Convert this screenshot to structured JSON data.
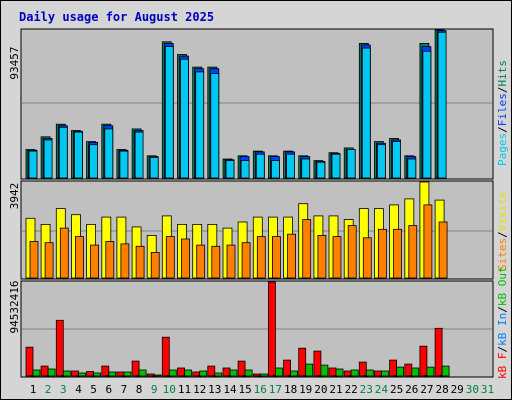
{
  "title": "Daily usage for August 2025",
  "colors": {
    "background": "#d5d5d5",
    "panel": "#c0c0c0",
    "title": "#0000c0",
    "hits": "#00805c",
    "files": "#0040ff",
    "pages": "#00c8f0",
    "visits": "#ffff00",
    "sites": "#ff8000",
    "kb_f": "#ff0000",
    "kb_in": "#0080ff",
    "kb_out": "#00c000",
    "weekday_tick": "#000000",
    "weekend_tick": "#008040"
  },
  "legend_top": {
    "pages": "Pages",
    "sep1": "/",
    "files": "Files",
    "sep2": "/",
    "hits": "Hits"
  },
  "legend_mid": {
    "sites": "Sites",
    "sep": "/",
    "visits": "Visits"
  },
  "legend_bot": {
    "kbf": "kB F",
    "sep1": "/",
    "kbin": "kB In",
    "sep2": "/",
    "kbout": "kB Out"
  },
  "chart_data": [
    {
      "type": "bar",
      "panel": "hits-files-pages",
      "categories": [
        "1",
        "2",
        "3",
        "4",
        "5",
        "6",
        "7",
        "8",
        "9",
        "10",
        "11",
        "12",
        "13",
        "14",
        "15",
        "16",
        "17",
        "18",
        "19",
        "20",
        "21",
        "22",
        "23",
        "24",
        "25",
        "26",
        "27",
        "28",
        "29",
        "30",
        "31"
      ],
      "y_label": "93457",
      "ylim": [
        0,
        93457
      ],
      "series": [
        {
          "name": "Hits",
          "values": [
            18000,
            26000,
            34000,
            30000,
            23000,
            34000,
            18000,
            31000,
            14000,
            86000,
            78000,
            70000,
            70000,
            12000,
            14000,
            17000,
            14000,
            17000,
            14000,
            11000,
            16000,
            19000,
            85000,
            23000,
            25000,
            14000,
            85000,
            93457,
            0,
            0,
            0
          ]
        },
        {
          "name": "Files",
          "values": [
            17500,
            25000,
            33000,
            29500,
            22500,
            33000,
            17500,
            30000,
            13500,
            85000,
            77000,
            69000,
            69000,
            11500,
            13500,
            16500,
            13500,
            16500,
            13500,
            10500,
            15500,
            18000,
            84000,
            22000,
            24000,
            13500,
            83000,
            93000,
            0,
            0,
            0
          ]
        },
        {
          "name": "Pages",
          "values": [
            17000,
            24000,
            32000,
            29000,
            21000,
            31000,
            17000,
            29000,
            13000,
            83000,
            75000,
            67000,
            66000,
            11000,
            11000,
            15000,
            11000,
            15000,
            12000,
            10000,
            15000,
            18000,
            82000,
            21000,
            23000,
            12000,
            80000,
            92000,
            0,
            0,
            0
          ]
        }
      ]
    },
    {
      "type": "bar",
      "panel": "visits-sites",
      "categories": [
        "1",
        "2",
        "3",
        "4",
        "5",
        "6",
        "7",
        "8",
        "9",
        "10",
        "11",
        "12",
        "13",
        "14",
        "15",
        "16",
        "17",
        "18",
        "19",
        "20",
        "21",
        "22",
        "23",
        "24",
        "25",
        "26",
        "27",
        "28",
        "29",
        "30",
        "31"
      ],
      "y_label": "3942",
      "ylim": [
        0,
        3942
      ],
      "series": [
        {
          "name": "Visits",
          "values": [
            2450,
            2200,
            2850,
            2600,
            2200,
            2500,
            2500,
            2100,
            1750,
            2550,
            2200,
            2200,
            2200,
            2050,
            2300,
            2500,
            2500,
            2500,
            3050,
            2550,
            2550,
            2400,
            2850,
            2850,
            3000,
            3250,
            3942,
            3200,
            0,
            0,
            0
          ]
        },
        {
          "name": "Sites",
          "values": [
            1500,
            1450,
            2050,
            1700,
            1350,
            1500,
            1400,
            1300,
            1050,
            1700,
            1600,
            1350,
            1300,
            1350,
            1450,
            1700,
            1700,
            1800,
            2400,
            1750,
            1700,
            2150,
            1650,
            2000,
            2000,
            2150,
            3000,
            2300,
            0,
            0,
            0
          ]
        }
      ]
    },
    {
      "type": "bar",
      "panel": "kilobytes",
      "categories": [
        "1",
        "2",
        "3",
        "4",
        "5",
        "6",
        "7",
        "8",
        "9",
        "10",
        "11",
        "12",
        "13",
        "14",
        "15",
        "16",
        "17",
        "18",
        "19",
        "20",
        "21",
        "22",
        "23",
        "24",
        "25",
        "26",
        "27",
        "28",
        "29",
        "30",
        "31"
      ],
      "y_label": "94532416",
      "ylim": [
        0,
        94532416
      ],
      "series": [
        {
          "name": "kB F",
          "values": [
            29000000,
            10000000,
            56000000,
            5000000,
            4500000,
            10000000,
            4000000,
            15000000,
            2000000,
            39000000,
            8000000,
            4000000,
            10000000,
            8000000,
            15000000,
            2000000,
            94532416,
            16000000,
            28000000,
            25000000,
            8000000,
            5000000,
            14000000,
            5000000,
            16000000,
            12000000,
            30000000,
            48000000,
            0,
            0,
            0
          ]
        },
        {
          "name": "kB In",
          "values": [
            400000,
            300000,
            600000,
            300000,
            300000,
            400000,
            300000,
            400000,
            200000,
            500000,
            400000,
            300000,
            400000,
            300000,
            400000,
            200000,
            900000,
            500000,
            600000,
            500000,
            300000,
            300000,
            500000,
            300000,
            500000,
            400000,
            600000,
            800000,
            0,
            0,
            0
          ]
        },
        {
          "name": "kB Out",
          "values": [
            6000000,
            7000000,
            5000000,
            3000000,
            3000000,
            4000000,
            4000000,
            6000000,
            1000000,
            6000000,
            6000000,
            5000000,
            3000000,
            6000000,
            6000000,
            2000000,
            8000000,
            5000000,
            12000000,
            11000000,
            7000000,
            6000000,
            6000000,
            5000000,
            9000000,
            8000000,
            9000000,
            10000000,
            0,
            0,
            0
          ]
        }
      ]
    }
  ],
  "weekend_days": [
    "2",
    "3",
    "9",
    "10",
    "16",
    "17",
    "23",
    "24",
    "30",
    "31"
  ]
}
